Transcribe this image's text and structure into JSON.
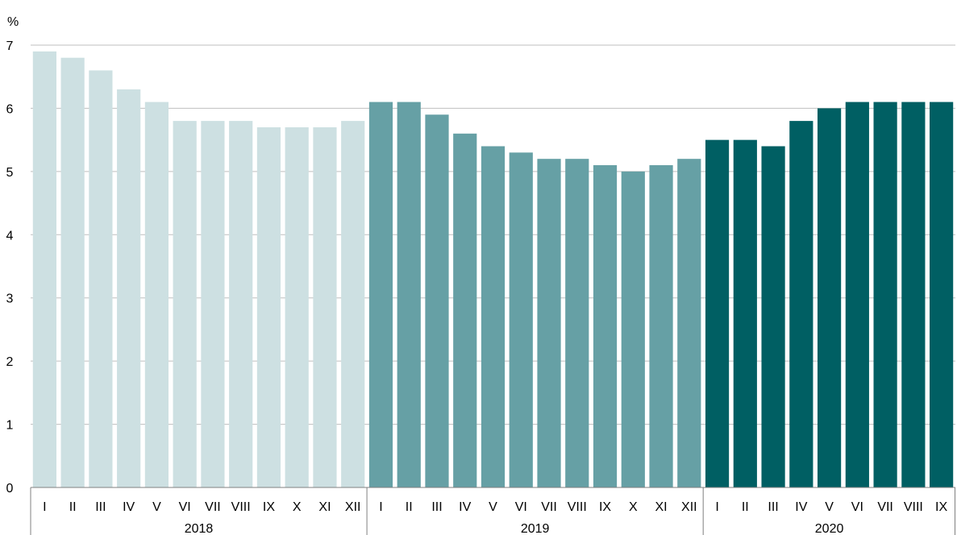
{
  "chart_data": {
    "type": "bar",
    "y_unit": "%",
    "ylim": [
      0,
      7
    ],
    "y_ticks": [
      "0",
      "1",
      "2",
      "3",
      "4",
      "5",
      "6",
      "7"
    ],
    "grid": true,
    "groups": [
      {
        "year": "2018",
        "color": "#cde0e2",
        "months": [
          "I",
          "II",
          "III",
          "IV",
          "V",
          "VI",
          "VII",
          "VIII",
          "IX",
          "X",
          "XI",
          "XII"
        ],
        "values": [
          6.9,
          6.8,
          6.6,
          6.3,
          6.1,
          5.8,
          5.8,
          5.8,
          5.7,
          5.7,
          5.7,
          5.8
        ]
      },
      {
        "year": "2019",
        "color": "#66a0a5",
        "months": [
          "I",
          "II",
          "III",
          "IV",
          "V",
          "VI",
          "VII",
          "VIII",
          "IX",
          "X",
          "XI",
          "XII"
        ],
        "values": [
          6.1,
          6.1,
          5.9,
          5.6,
          5.4,
          5.3,
          5.2,
          5.2,
          5.1,
          5.0,
          5.1,
          5.2
        ]
      },
      {
        "year": "2020",
        "color": "#005f63",
        "months": [
          "I",
          "II",
          "III",
          "IV",
          "V",
          "VI",
          "VII",
          "VIII",
          "IX"
        ],
        "values": [
          5.5,
          5.5,
          5.4,
          5.8,
          6.0,
          6.1,
          6.1,
          6.1,
          6.1
        ]
      }
    ]
  }
}
